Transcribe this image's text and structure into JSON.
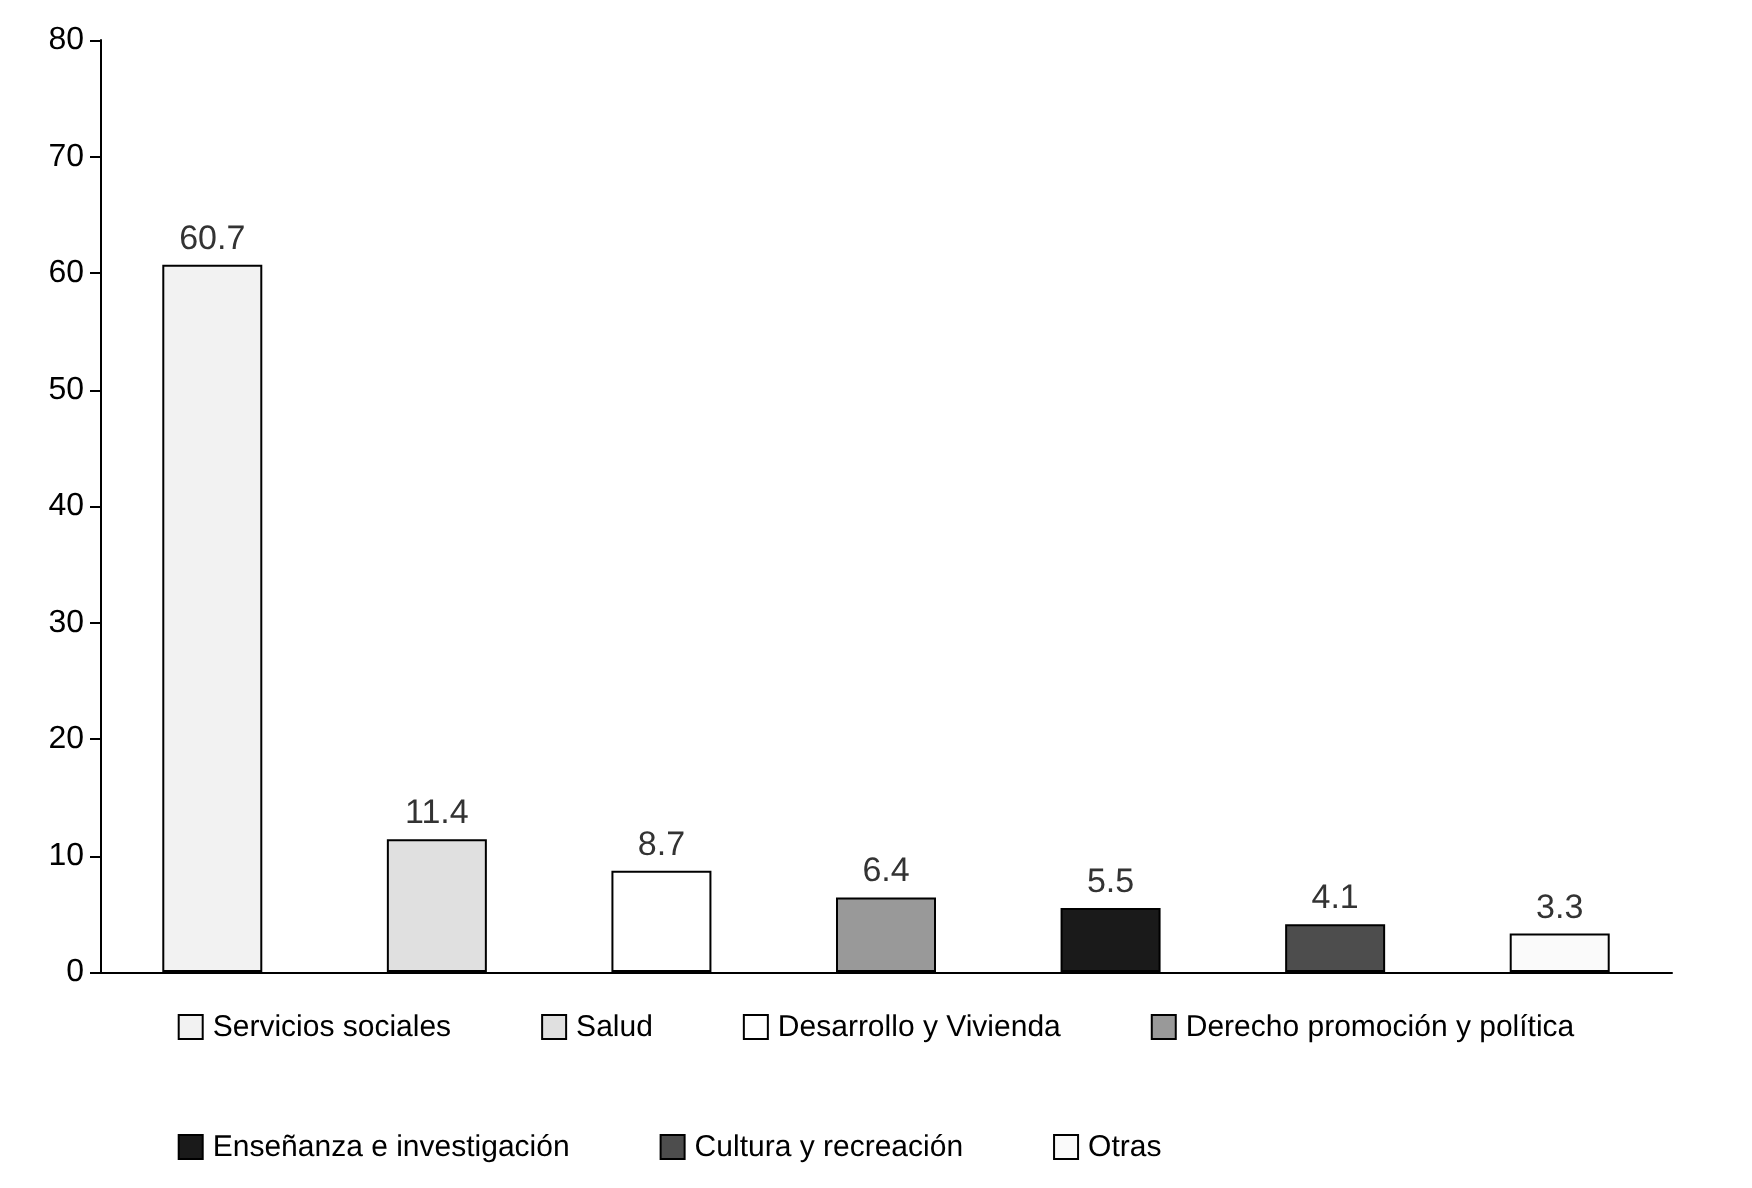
{
  "chart_data": {
    "type": "bar",
    "categories": [
      null,
      null,
      null,
      null,
      null,
      null,
      null
    ],
    "series": [
      {
        "name": "Servicios sociales",
        "color": "#f2f2f2",
        "values": [
          60.7,
          null,
          null,
          null,
          null,
          null,
          null
        ]
      },
      {
        "name": "Salud",
        "color": "#e0e0e0",
        "values": [
          null,
          11.4,
          null,
          null,
          null,
          null,
          null
        ]
      },
      {
        "name": "Desarrollo y Vivienda",
        "color": "#ffffff",
        "values": [
          null,
          null,
          8.7,
          null,
          null,
          null,
          null
        ]
      },
      {
        "name": "Derecho promoción y política",
        "color": "#999999",
        "values": [
          null,
          null,
          null,
          6.4,
          null,
          null,
          null
        ]
      },
      {
        "name": "Enseñanza e investigación",
        "color": "#1a1a1a",
        "values": [
          null,
          null,
          null,
          null,
          5.5,
          null,
          null
        ]
      },
      {
        "name": "Cultura y recreación",
        "color": "#4d4d4d",
        "values": [
          null,
          null,
          null,
          null,
          null,
          4.1,
          null
        ]
      },
      {
        "name": "Otras",
        "color": "#fafafa",
        "values": [
          null,
          null,
          null,
          null,
          null,
          null,
          3.3
        ]
      }
    ],
    "ylim": [
      0,
      80
    ],
    "yticks": [
      0,
      10,
      20,
      30,
      40,
      50,
      60,
      70,
      80
    ],
    "grid": false,
    "legend": "bottom",
    "data_labels": true
  }
}
